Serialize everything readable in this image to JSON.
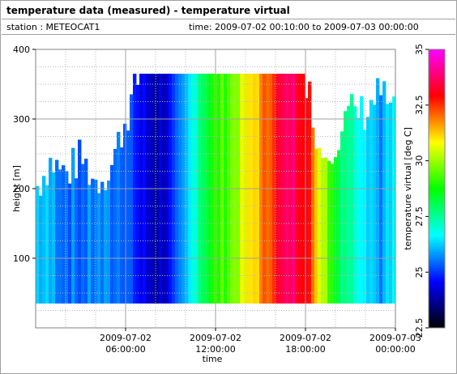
{
  "header": {
    "title": "temperature data (measured) - temperature virtual",
    "station": "station : METEOCAT1",
    "time_range": "time: 2009-07-02 00:10:00 to 2009-07-03 00:00:00"
  },
  "chart_data": {
    "type": "heatmap",
    "title": "temperature data (measured) - temperature virtual",
    "xlabel": "time",
    "ylabel": "height [m]",
    "colorbar_label": "temperature virtual [deg C]",
    "xlim_hours": [
      0,
      24
    ],
    "ylim": [
      0,
      400
    ],
    "x_ticks": [
      {
        "hours": 6,
        "line1": "2009-07-02",
        "line2": "06:00:00"
      },
      {
        "hours": 12,
        "line1": "2009-07-02",
        "line2": "12:00:00"
      },
      {
        "hours": 18,
        "line1": "2009-07-02",
        "line2": "18:00:00"
      },
      {
        "hours": 24,
        "line1": "2009-07-03",
        "line2": "00:00:00"
      }
    ],
    "y_ticks": [
      100,
      200,
      300,
      400
    ],
    "colorbar_ticks": [
      22.5,
      25,
      27.5,
      30,
      32.5,
      35
    ],
    "colorbar_range": [
      22.5,
      35
    ],
    "grid": true,
    "colormap": [
      "#000000",
      "#0000ff",
      "#00ffff",
      "#00ff00",
      "#ffff00",
      "#ff0000",
      "#ff00ff"
    ],
    "data_height_range": [
      35,
      365
    ],
    "temperature_profile_hourly": [
      {
        "hours": 0,
        "temp": 26.3
      },
      {
        "hours": 1,
        "temp": 26.0
      },
      {
        "hours": 2,
        "temp": 25.6
      },
      {
        "hours": 3,
        "temp": 25.4
      },
      {
        "hours": 4,
        "temp": 25.7
      },
      {
        "hours": 5,
        "temp": 25.5
      },
      {
        "hours": 6,
        "temp": 25.6
      },
      {
        "hours": 7,
        "temp": 24.5
      },
      {
        "hours": 8,
        "temp": 24.0
      },
      {
        "hours": 9,
        "temp": 24.5
      },
      {
        "hours": 10,
        "temp": 25.8
      },
      {
        "hours": 11,
        "temp": 28.0
      },
      {
        "hours": 12,
        "temp": 29.0
      },
      {
        "hours": 13,
        "temp": 29.6
      },
      {
        "hours": 14,
        "temp": 30.6
      },
      {
        "hours": 15,
        "temp": 31.6
      },
      {
        "hours": 16,
        "temp": 33.0
      },
      {
        "hours": 17,
        "temp": 33.8
      },
      {
        "hours": 18,
        "temp": 33.2
      },
      {
        "hours": 19,
        "temp": 30.7
      },
      {
        "hours": 20,
        "temp": 28.5
      },
      {
        "hours": 21,
        "temp": 27.4
      },
      {
        "hours": 22,
        "temp": 26.8
      },
      {
        "hours": 23,
        "temp": 25.8
      },
      {
        "hours": 24,
        "temp": 26.5
      }
    ],
    "top_height_profile": [
      {
        "hours": 0,
        "top": 200
      },
      {
        "hours": 1,
        "top": 240
      },
      {
        "hours": 2,
        "top": 220
      },
      {
        "hours": 3,
        "top": 245
      },
      {
        "hours": 4,
        "top": 210
      },
      {
        "hours": 5,
        "top": 230
      },
      {
        "hours": 6,
        "top": 300
      },
      {
        "hours": 7,
        "top": 365
      },
      {
        "hours": 18,
        "top": 365
      },
      {
        "hours": 19,
        "top": 250
      },
      {
        "hours": 20,
        "top": 270
      },
      {
        "hours": 21,
        "top": 310
      },
      {
        "hours": 22,
        "top": 310
      },
      {
        "hours": 23,
        "top": 340
      },
      {
        "hours": 24,
        "top": 300
      }
    ]
  }
}
